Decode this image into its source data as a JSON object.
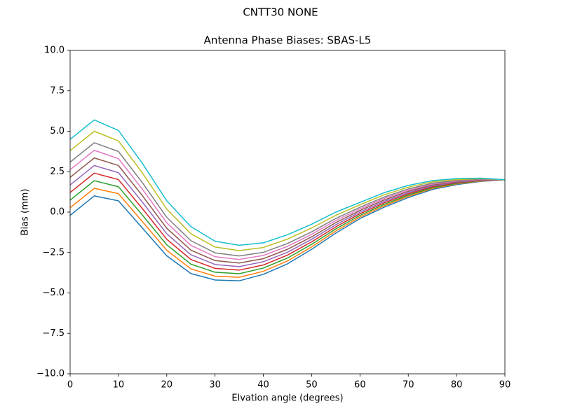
{
  "chart_data": {
    "type": "line",
    "suptitle": "CNTT30           NONE",
    "title": "Antenna Phase Biases: SBAS-L5",
    "xlabel": "Elvation angle (degrees)",
    "ylabel": "Bias (mm)",
    "x": [
      0,
      5,
      10,
      15,
      20,
      25,
      30,
      35,
      40,
      45,
      50,
      55,
      60,
      65,
      70,
      75,
      80,
      85,
      90
    ],
    "xlim": [
      0,
      90
    ],
    "xticks": [
      0,
      10,
      20,
      30,
      40,
      50,
      60,
      70,
      80,
      90
    ],
    "ylim": [
      -10,
      10
    ],
    "yticks": [
      {
        "value": -10,
        "label": "−10.0"
      },
      {
        "value": -7.5,
        "label": "−7.5"
      },
      {
        "value": -5,
        "label": "−5.0"
      },
      {
        "value": -2.5,
        "label": "−2.5"
      },
      {
        "value": 0,
        "label": "0.0"
      },
      {
        "value": 2.5,
        "label": "2.5"
      },
      {
        "value": 5,
        "label": "5.0"
      },
      {
        "value": 7.5,
        "label": "7.5"
      },
      {
        "value": 10,
        "label": "10.0"
      }
    ],
    "grid": false,
    "series": [
      {
        "color": "#1f77b4",
        "values": [
          -0.2,
          1.0,
          0.7,
          -1.0,
          -2.7,
          -3.8,
          -4.2,
          -4.25,
          -3.85,
          -3.2,
          -2.3,
          -1.3,
          -0.4,
          0.3,
          0.9,
          1.4,
          1.7,
          1.9,
          2.0
        ]
      },
      {
        "color": "#ff7f0e",
        "values": [
          0.27,
          1.47,
          1.14,
          -0.6,
          -2.36,
          -3.51,
          -3.96,
          -4.03,
          -3.66,
          -3.02,
          -2.15,
          -1.17,
          -0.3,
          0.39,
          0.98,
          1.46,
          1.74,
          1.92,
          2.0
        ]
      },
      {
        "color": "#2ca02c",
        "values": [
          0.74,
          1.94,
          1.57,
          -0.2,
          -2.02,
          -3.22,
          -3.72,
          -3.81,
          -3.46,
          -2.84,
          -1.99,
          -1.04,
          -0.2,
          0.48,
          1.05,
          1.51,
          1.77,
          1.94,
          2.0
        ]
      },
      {
        "color": "#d62728",
        "values": [
          1.21,
          2.41,
          2.01,
          0.2,
          -1.68,
          -2.93,
          -3.48,
          -3.59,
          -3.27,
          -2.66,
          -1.84,
          -0.91,
          -0.1,
          0.57,
          1.13,
          1.57,
          1.81,
          1.96,
          2.0
        ]
      },
      {
        "color": "#9467bd",
        "values": [
          1.68,
          2.88,
          2.44,
          0.6,
          -1.34,
          -2.64,
          -3.24,
          -3.37,
          -3.07,
          -2.48,
          -1.68,
          -0.78,
          0.0,
          0.66,
          1.2,
          1.62,
          1.85,
          1.98,
          2.0
        ]
      },
      {
        "color": "#8c564b",
        "values": [
          2.15,
          3.35,
          2.88,
          1.0,
          -1.0,
          -2.35,
          -3.0,
          -3.15,
          -2.88,
          -2.3,
          -1.53,
          -0.65,
          0.1,
          0.75,
          1.28,
          1.68,
          1.89,
          2.0,
          2.0
        ]
      },
      {
        "color": "#e377c2",
        "values": [
          2.62,
          3.82,
          3.31,
          1.4,
          -0.66,
          -2.06,
          -2.76,
          -2.93,
          -2.68,
          -2.12,
          -1.37,
          -0.52,
          0.2,
          0.84,
          1.35,
          1.73,
          1.92,
          2.02,
          2.0
        ]
      },
      {
        "color": "#7f7f7f",
        "values": [
          3.09,
          4.29,
          3.75,
          1.8,
          -0.32,
          -1.77,
          -2.52,
          -2.71,
          -2.49,
          -1.94,
          -1.22,
          -0.39,
          0.3,
          0.93,
          1.43,
          1.79,
          1.96,
          2.04,
          2.0
        ]
      },
      {
        "color": "#bcbd22",
        "values": [
          3.8,
          5.0,
          4.4,
          2.4,
          0.19,
          -1.34,
          -2.16,
          -2.38,
          -2.19,
          -1.67,
          -0.98,
          -0.2,
          0.45,
          1.07,
          1.54,
          1.87,
          2.01,
          2.07,
          2.0
        ]
      },
      {
        "color": "#17becf",
        "values": [
          4.5,
          5.7,
          5.05,
          3.0,
          0.7,
          -0.9,
          -1.8,
          -2.05,
          -1.9,
          -1.4,
          -0.75,
          0.0,
          0.6,
          1.2,
          1.65,
          1.95,
          2.07,
          2.1,
          2.0
        ]
      }
    ]
  }
}
